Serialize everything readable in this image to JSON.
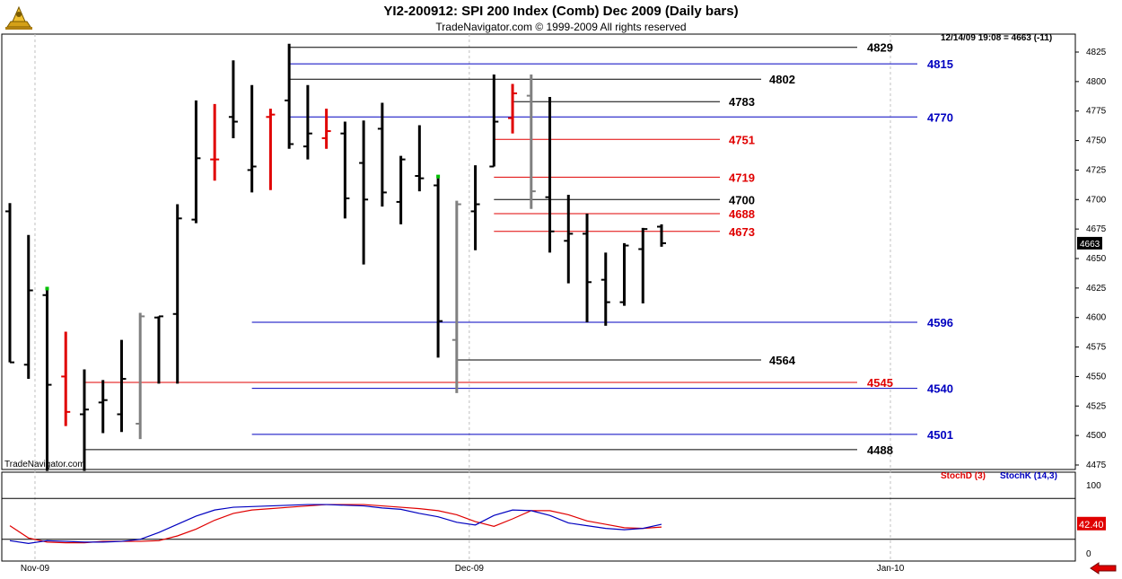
{
  "title": "YI2-200912:  SPI 200 Index (Comb) Dec 2009  (Daily bars)",
  "subtitle": "TradeNavigator.com © 1999-2009 All rights reserved",
  "quote_line": "12/14/09 19:08 = 4663 (-11)",
  "watermark": "TradeNavigator.com",
  "last_price_label": "4663",
  "logo_icon": "trade-navigator-logo-icon",
  "nav_icon": "red-left-arrow-icon",
  "colors": {
    "up_bar": "#000000",
    "red_bar": "#e00000",
    "gray_bar": "#808080",
    "blue_level": "#0000c0",
    "red_level": "#e00000",
    "black_level": "#000000",
    "stoch_d": "#e00000",
    "stoch_k": "#0000c0",
    "grid": "#c0c0c0",
    "green_mark": "#00c000"
  },
  "chart_data": [
    {
      "type": "ohlc",
      "ylim": [
        4470,
        4830
      ],
      "yticks": [
        4475,
        4500,
        4525,
        4550,
        4575,
        4600,
        4625,
        4650,
        4675,
        4700,
        4725,
        4750,
        4775,
        4800,
        4825
      ],
      "xticks": [
        "Nov-09",
        "Dec-09",
        "Jan-10"
      ],
      "bars": [
        {
          "date": "Oct-26",
          "o": 4690,
          "h": 4697,
          "l": 4562,
          "c": 4562,
          "color": "black"
        },
        {
          "date": "Oct-27",
          "o": 4560,
          "h": 4670,
          "l": 4548,
          "c": 4623,
          "color": "black"
        },
        {
          "date": "Oct-29",
          "o": 4619,
          "h": 4623,
          "l": 4470,
          "c": 4543,
          "color": "black",
          "mark": "green"
        },
        {
          "date": "Oct-30",
          "o": 4550,
          "h": 4588,
          "l": 4508,
          "c": 4520,
          "color": "red"
        },
        {
          "date": "Nov-02",
          "o": 4518,
          "h": 4556,
          "l": 4470,
          "c": 4522,
          "color": "black"
        },
        {
          "date": "Nov-03",
          "o": 4528,
          "h": 4547,
          "l": 4502,
          "c": 4530,
          "color": "black"
        },
        {
          "date": "Nov-04",
          "o": 4518,
          "h": 4581,
          "l": 4503,
          "c": 4548,
          "color": "black"
        },
        {
          "date": "Nov-05",
          "o": 4510,
          "h": 4604,
          "l": 4497,
          "c": 4601,
          "color": "gray"
        },
        {
          "date": "Nov-06",
          "o": 4600,
          "h": 4601,
          "l": 4544,
          "c": 4601,
          "color": "black"
        },
        {
          "date": "Nov-09",
          "o": 4603,
          "h": 4696,
          "l": 4544,
          "c": 4684,
          "color": "black"
        },
        {
          "date": "Nov-10",
          "o": 4683,
          "h": 4784,
          "l": 4680,
          "c": 4735,
          "color": "black"
        },
        {
          "date": "Nov-11",
          "o": 4734,
          "h": 4781,
          "l": 4716,
          "c": 4734,
          "color": "red"
        },
        {
          "date": "Nov-12",
          "o": 4770,
          "h": 4818,
          "l": 4752,
          "c": 4766,
          "color": "black"
        },
        {
          "date": "Nov-13",
          "o": 4725,
          "h": 4797,
          "l": 4706,
          "c": 4728,
          "color": "black"
        },
        {
          "date": "Nov-16",
          "o": 4770,
          "h": 4777,
          "l": 4708,
          "c": 4772,
          "color": "red"
        },
        {
          "date": "Nov-17",
          "o": 4784,
          "h": 4832,
          "l": 4743,
          "c": 4747,
          "color": "black"
        },
        {
          "date": "Nov-18",
          "o": 4745,
          "h": 4797,
          "l": 4734,
          "c": 4756,
          "color": "black"
        },
        {
          "date": "Nov-19",
          "o": 4752,
          "h": 4777,
          "l": 4743,
          "c": 4758,
          "color": "red"
        },
        {
          "date": "Nov-20",
          "o": 4756,
          "h": 4766,
          "l": 4684,
          "c": 4701,
          "color": "black"
        },
        {
          "date": "Nov-23",
          "o": 4731,
          "h": 4767,
          "l": 4645,
          "c": 4700,
          "color": "black"
        },
        {
          "date": "Nov-24",
          "o": 4760,
          "h": 4782,
          "l": 4694,
          "c": 4706,
          "color": "black"
        },
        {
          "date": "Nov-25",
          "o": 4698,
          "h": 4737,
          "l": 4679,
          "c": 4734,
          "color": "black"
        },
        {
          "date": "Nov-26",
          "o": 4720,
          "h": 4763,
          "l": 4707,
          "c": 4718,
          "color": "black"
        },
        {
          "date": "Nov-27",
          "o": 4712,
          "h": 4718,
          "l": 4566,
          "c": 4597,
          "color": "black",
          "mark": "green"
        },
        {
          "date": "Nov-30",
          "o": 4581,
          "h": 4699,
          "l": 4536,
          "c": 4696,
          "color": "gray"
        },
        {
          "date": "Dec-01",
          "o": 4690,
          "h": 4729,
          "l": 4657,
          "c": 4696,
          "color": "black"
        },
        {
          "date": "Dec-02",
          "o": 4728,
          "h": 4806,
          "l": 4728,
          "c": 4766,
          "color": "black"
        },
        {
          "date": "Dec-03",
          "o": 4769,
          "h": 4798,
          "l": 4756,
          "c": 4790,
          "color": "red"
        },
        {
          "date": "Dec-04",
          "o": 4788,
          "h": 4806,
          "l": 4692,
          "c": 4707,
          "color": "gray"
        },
        {
          "date": "Dec-07",
          "o": 4702,
          "h": 4787,
          "l": 4655,
          "c": 4673,
          "color": "black"
        },
        {
          "date": "Dec-08",
          "o": 4665,
          "h": 4704,
          "l": 4629,
          "c": 4671,
          "color": "black"
        },
        {
          "date": "Dec-09",
          "o": 4671,
          "h": 4688,
          "l": 4596,
          "c": 4630,
          "color": "black"
        },
        {
          "date": "Dec-10",
          "o": 4632,
          "h": 4655,
          "l": 4593,
          "c": 4613,
          "color": "black"
        },
        {
          "date": "Dec-11",
          "o": 4613,
          "h": 4663,
          "l": 4610,
          "c": 4661,
          "color": "black"
        },
        {
          "date": "Dec-14",
          "o": 4658,
          "h": 4676,
          "l": 4612,
          "c": 4675,
          "color": "black"
        },
        {
          "date": "Dec-15",
          "o": 4677,
          "h": 4679,
          "l": 4660,
          "c": 4663,
          "color": "black"
        }
      ],
      "levels": [
        {
          "value": 4829,
          "label": "4829",
          "color": "black",
          "from": "Nov-17",
          "to": 4829
        },
        {
          "value": 4815,
          "label": "4815",
          "color": "blue",
          "from": "Nov-17",
          "to": 4815
        },
        {
          "value": 4802,
          "label": "4802",
          "color": "black",
          "from": "Nov-17",
          "to": 4802
        },
        {
          "value": 4783,
          "label": "4783",
          "color": "black",
          "from": "Dec-03",
          "to": 4783
        },
        {
          "value": 4770,
          "label": "4770",
          "color": "blue",
          "from": "Nov-17",
          "to": 4770
        },
        {
          "value": 4751,
          "label": "4751",
          "color": "red",
          "from": "Dec-02",
          "to": 4751
        },
        {
          "value": 4719,
          "label": "4719",
          "color": "red",
          "from": "Dec-02",
          "to": 4719
        },
        {
          "value": 4700,
          "label": "4700",
          "color": "black",
          "from": "Dec-02",
          "to": 4700
        },
        {
          "value": 4688,
          "label": "4688",
          "color": "red",
          "from": "Dec-02",
          "to": 4688
        },
        {
          "value": 4673,
          "label": "4673",
          "color": "red",
          "from": "Dec-02",
          "to": 4673
        },
        {
          "value": 4596,
          "label": "4596",
          "color": "blue",
          "from": "Nov-13",
          "to": 4596
        },
        {
          "value": 4564,
          "label": "4564",
          "color": "black",
          "from": "Nov-30",
          "to": 4564
        },
        {
          "value": 4545,
          "label": "4545",
          "color": "red",
          "from": "Nov-02",
          "to": 4545
        },
        {
          "value": 4540,
          "label": "4540",
          "color": "blue",
          "from": "Nov-13",
          "to": 4540
        },
        {
          "value": 4501,
          "label": "4501",
          "color": "blue",
          "from": "Nov-13",
          "to": 4501
        },
        {
          "value": 4488,
          "label": "4488",
          "color": "black",
          "from": "Nov-02",
          "to": 4488
        }
      ]
    },
    {
      "type": "line",
      "ylim": [
        0,
        100
      ],
      "yticks": [
        0,
        100
      ],
      "reference_lines": [
        80,
        20
      ],
      "last_value_label": "42.40",
      "legend": [
        {
          "name": "StochD (3)",
          "color": "red"
        },
        {
          "name": "StochK (14,3)",
          "color": "blue"
        }
      ],
      "series": [
        {
          "name": "StochD (3)",
          "color": "red",
          "values": [
            40,
            22,
            16,
            15,
            15,
            17,
            17,
            17,
            18,
            25,
            35,
            48,
            58,
            63,
            65,
            67,
            69,
            71,
            71,
            71,
            69,
            67,
            65,
            62,
            56,
            46,
            39,
            50,
            62,
            62,
            56,
            47,
            42,
            37,
            36,
            38
          ]
        },
        {
          "name": "StochK (14,3)",
          "color": "blue",
          "values": [
            18,
            14,
            18,
            17,
            16,
            16,
            17,
            20,
            30,
            42,
            54,
            63,
            67,
            68,
            69,
            70,
            71,
            71,
            70,
            69,
            66,
            64,
            58,
            53,
            45,
            41,
            55,
            63,
            62,
            55,
            44,
            40,
            36,
            34,
            36,
            42
          ]
        }
      ]
    }
  ]
}
